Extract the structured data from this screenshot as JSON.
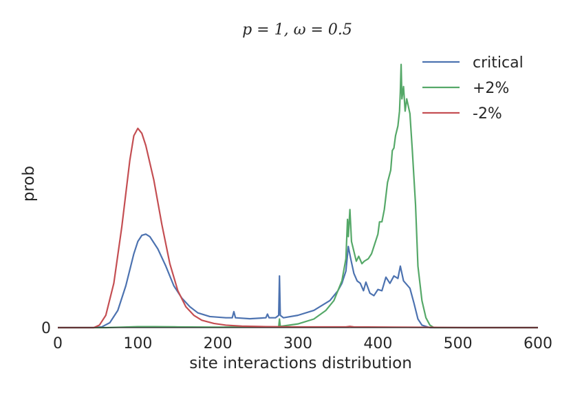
{
  "chart_data": {
    "type": "line",
    "title": "p = 1, ω = 0.5",
    "xlabel": "site interactions distribution",
    "ylabel": "prob",
    "xlim": [
      0,
      600
    ],
    "ylim": [
      0,
      1.08
    ],
    "x_ticks": [
      0,
      100,
      200,
      300,
      400,
      500,
      600
    ],
    "x_tick_labels": [
      "0",
      "100",
      "200",
      "300",
      "400",
      "500",
      "600"
    ],
    "y_ticks": [
      0
    ],
    "y_tick_labels": [
      "0"
    ],
    "grid": false,
    "legend_position": "top-right",
    "series": [
      {
        "name": "critical",
        "color": "#4c72b0",
        "points": [
          [
            0,
            0
          ],
          [
            45,
            0
          ],
          [
            55,
            0.003
          ],
          [
            65,
            0.02
          ],
          [
            75,
            0.07
          ],
          [
            85,
            0.17
          ],
          [
            95,
            0.3
          ],
          [
            100,
            0.35
          ],
          [
            105,
            0.375
          ],
          [
            110,
            0.38
          ],
          [
            115,
            0.37
          ],
          [
            125,
            0.32
          ],
          [
            135,
            0.25
          ],
          [
            145,
            0.17
          ],
          [
            155,
            0.12
          ],
          [
            165,
            0.085
          ],
          [
            175,
            0.06
          ],
          [
            190,
            0.045
          ],
          [
            210,
            0.04
          ],
          [
            218,
            0.04
          ],
          [
            220,
            0.065
          ],
          [
            222,
            0.04
          ],
          [
            240,
            0.036
          ],
          [
            260,
            0.04
          ],
          [
            262,
            0.055
          ],
          [
            264,
            0.04
          ],
          [
            272,
            0.04
          ],
          [
            276,
            0.05
          ],
          [
            277,
            0.21
          ],
          [
            278,
            0.05
          ],
          [
            282,
            0.04
          ],
          [
            300,
            0.05
          ],
          [
            320,
            0.07
          ],
          [
            340,
            0.11
          ],
          [
            350,
            0.15
          ],
          [
            355,
            0.18
          ],
          [
            360,
            0.23
          ],
          [
            363,
            0.33
          ],
          [
            366,
            0.28
          ],
          [
            370,
            0.22
          ],
          [
            374,
            0.19
          ],
          [
            378,
            0.18
          ],
          [
            382,
            0.15
          ],
          [
            385,
            0.185
          ],
          [
            390,
            0.14
          ],
          [
            395,
            0.13
          ],
          [
            400,
            0.155
          ],
          [
            405,
            0.15
          ],
          [
            410,
            0.205
          ],
          [
            415,
            0.18
          ],
          [
            420,
            0.21
          ],
          [
            425,
            0.2
          ],
          [
            428,
            0.25
          ],
          [
            432,
            0.19
          ],
          [
            440,
            0.16
          ],
          [
            445,
            0.1
          ],
          [
            450,
            0.035
          ],
          [
            455,
            0.01
          ],
          [
            465,
            0
          ],
          [
            600,
            0
          ]
        ]
      },
      {
        "name": "+2%",
        "color": "#55a868",
        "points": [
          [
            0,
            0
          ],
          [
            60,
            0
          ],
          [
            80,
            0.002
          ],
          [
            100,
            0.004
          ],
          [
            120,
            0.004
          ],
          [
            150,
            0.003
          ],
          [
            200,
            0.002
          ],
          [
            260,
            0.003
          ],
          [
            276,
            0.003
          ],
          [
            277,
            0.035
          ],
          [
            278,
            0.005
          ],
          [
            300,
            0.015
          ],
          [
            320,
            0.035
          ],
          [
            335,
            0.07
          ],
          [
            345,
            0.11
          ],
          [
            355,
            0.19
          ],
          [
            360,
            0.28
          ],
          [
            362,
            0.44
          ],
          [
            363,
            0.37
          ],
          [
            365,
            0.48
          ],
          [
            367,
            0.35
          ],
          [
            370,
            0.31
          ],
          [
            373,
            0.27
          ],
          [
            376,
            0.29
          ],
          [
            380,
            0.26
          ],
          [
            383,
            0.27
          ],
          [
            388,
            0.28
          ],
          [
            392,
            0.3
          ],
          [
            396,
            0.34
          ],
          [
            400,
            0.38
          ],
          [
            402,
            0.43
          ],
          [
            405,
            0.43
          ],
          [
            408,
            0.48
          ],
          [
            412,
            0.59
          ],
          [
            416,
            0.64
          ],
          [
            418,
            0.72
          ],
          [
            420,
            0.73
          ],
          [
            422,
            0.78
          ],
          [
            425,
            0.82
          ],
          [
            427,
            0.88
          ],
          [
            428,
            0.96
          ],
          [
            429,
            1.07
          ],
          [
            430,
            0.93
          ],
          [
            432,
            0.98
          ],
          [
            434,
            0.88
          ],
          [
            436,
            0.93
          ],
          [
            438,
            0.9
          ],
          [
            440,
            0.87
          ],
          [
            443,
            0.72
          ],
          [
            447,
            0.5
          ],
          [
            450,
            0.25
          ],
          [
            455,
            0.11
          ],
          [
            460,
            0.04
          ],
          [
            465,
            0.01
          ],
          [
            470,
            0
          ],
          [
            600,
            0
          ]
        ]
      },
      {
        "name": "-2%",
        "color": "#c44e52",
        "points": [
          [
            0,
            0
          ],
          [
            45,
            0
          ],
          [
            52,
            0.01
          ],
          [
            60,
            0.05
          ],
          [
            70,
            0.18
          ],
          [
            80,
            0.41
          ],
          [
            90,
            0.68
          ],
          [
            95,
            0.78
          ],
          [
            100,
            0.81
          ],
          [
            105,
            0.79
          ],
          [
            110,
            0.74
          ],
          [
            120,
            0.6
          ],
          [
            130,
            0.42
          ],
          [
            140,
            0.26
          ],
          [
            150,
            0.15
          ],
          [
            160,
            0.085
          ],
          [
            170,
            0.05
          ],
          [
            180,
            0.03
          ],
          [
            195,
            0.017
          ],
          [
            210,
            0.01
          ],
          [
            230,
            0.006
          ],
          [
            260,
            0.004
          ],
          [
            300,
            0.003
          ],
          [
            360,
            0.003
          ],
          [
            365,
            0.005
          ],
          [
            370,
            0.003
          ],
          [
            420,
            0.002
          ],
          [
            470,
            0.001
          ],
          [
            510,
            0
          ],
          [
            600,
            0
          ]
        ]
      }
    ]
  }
}
